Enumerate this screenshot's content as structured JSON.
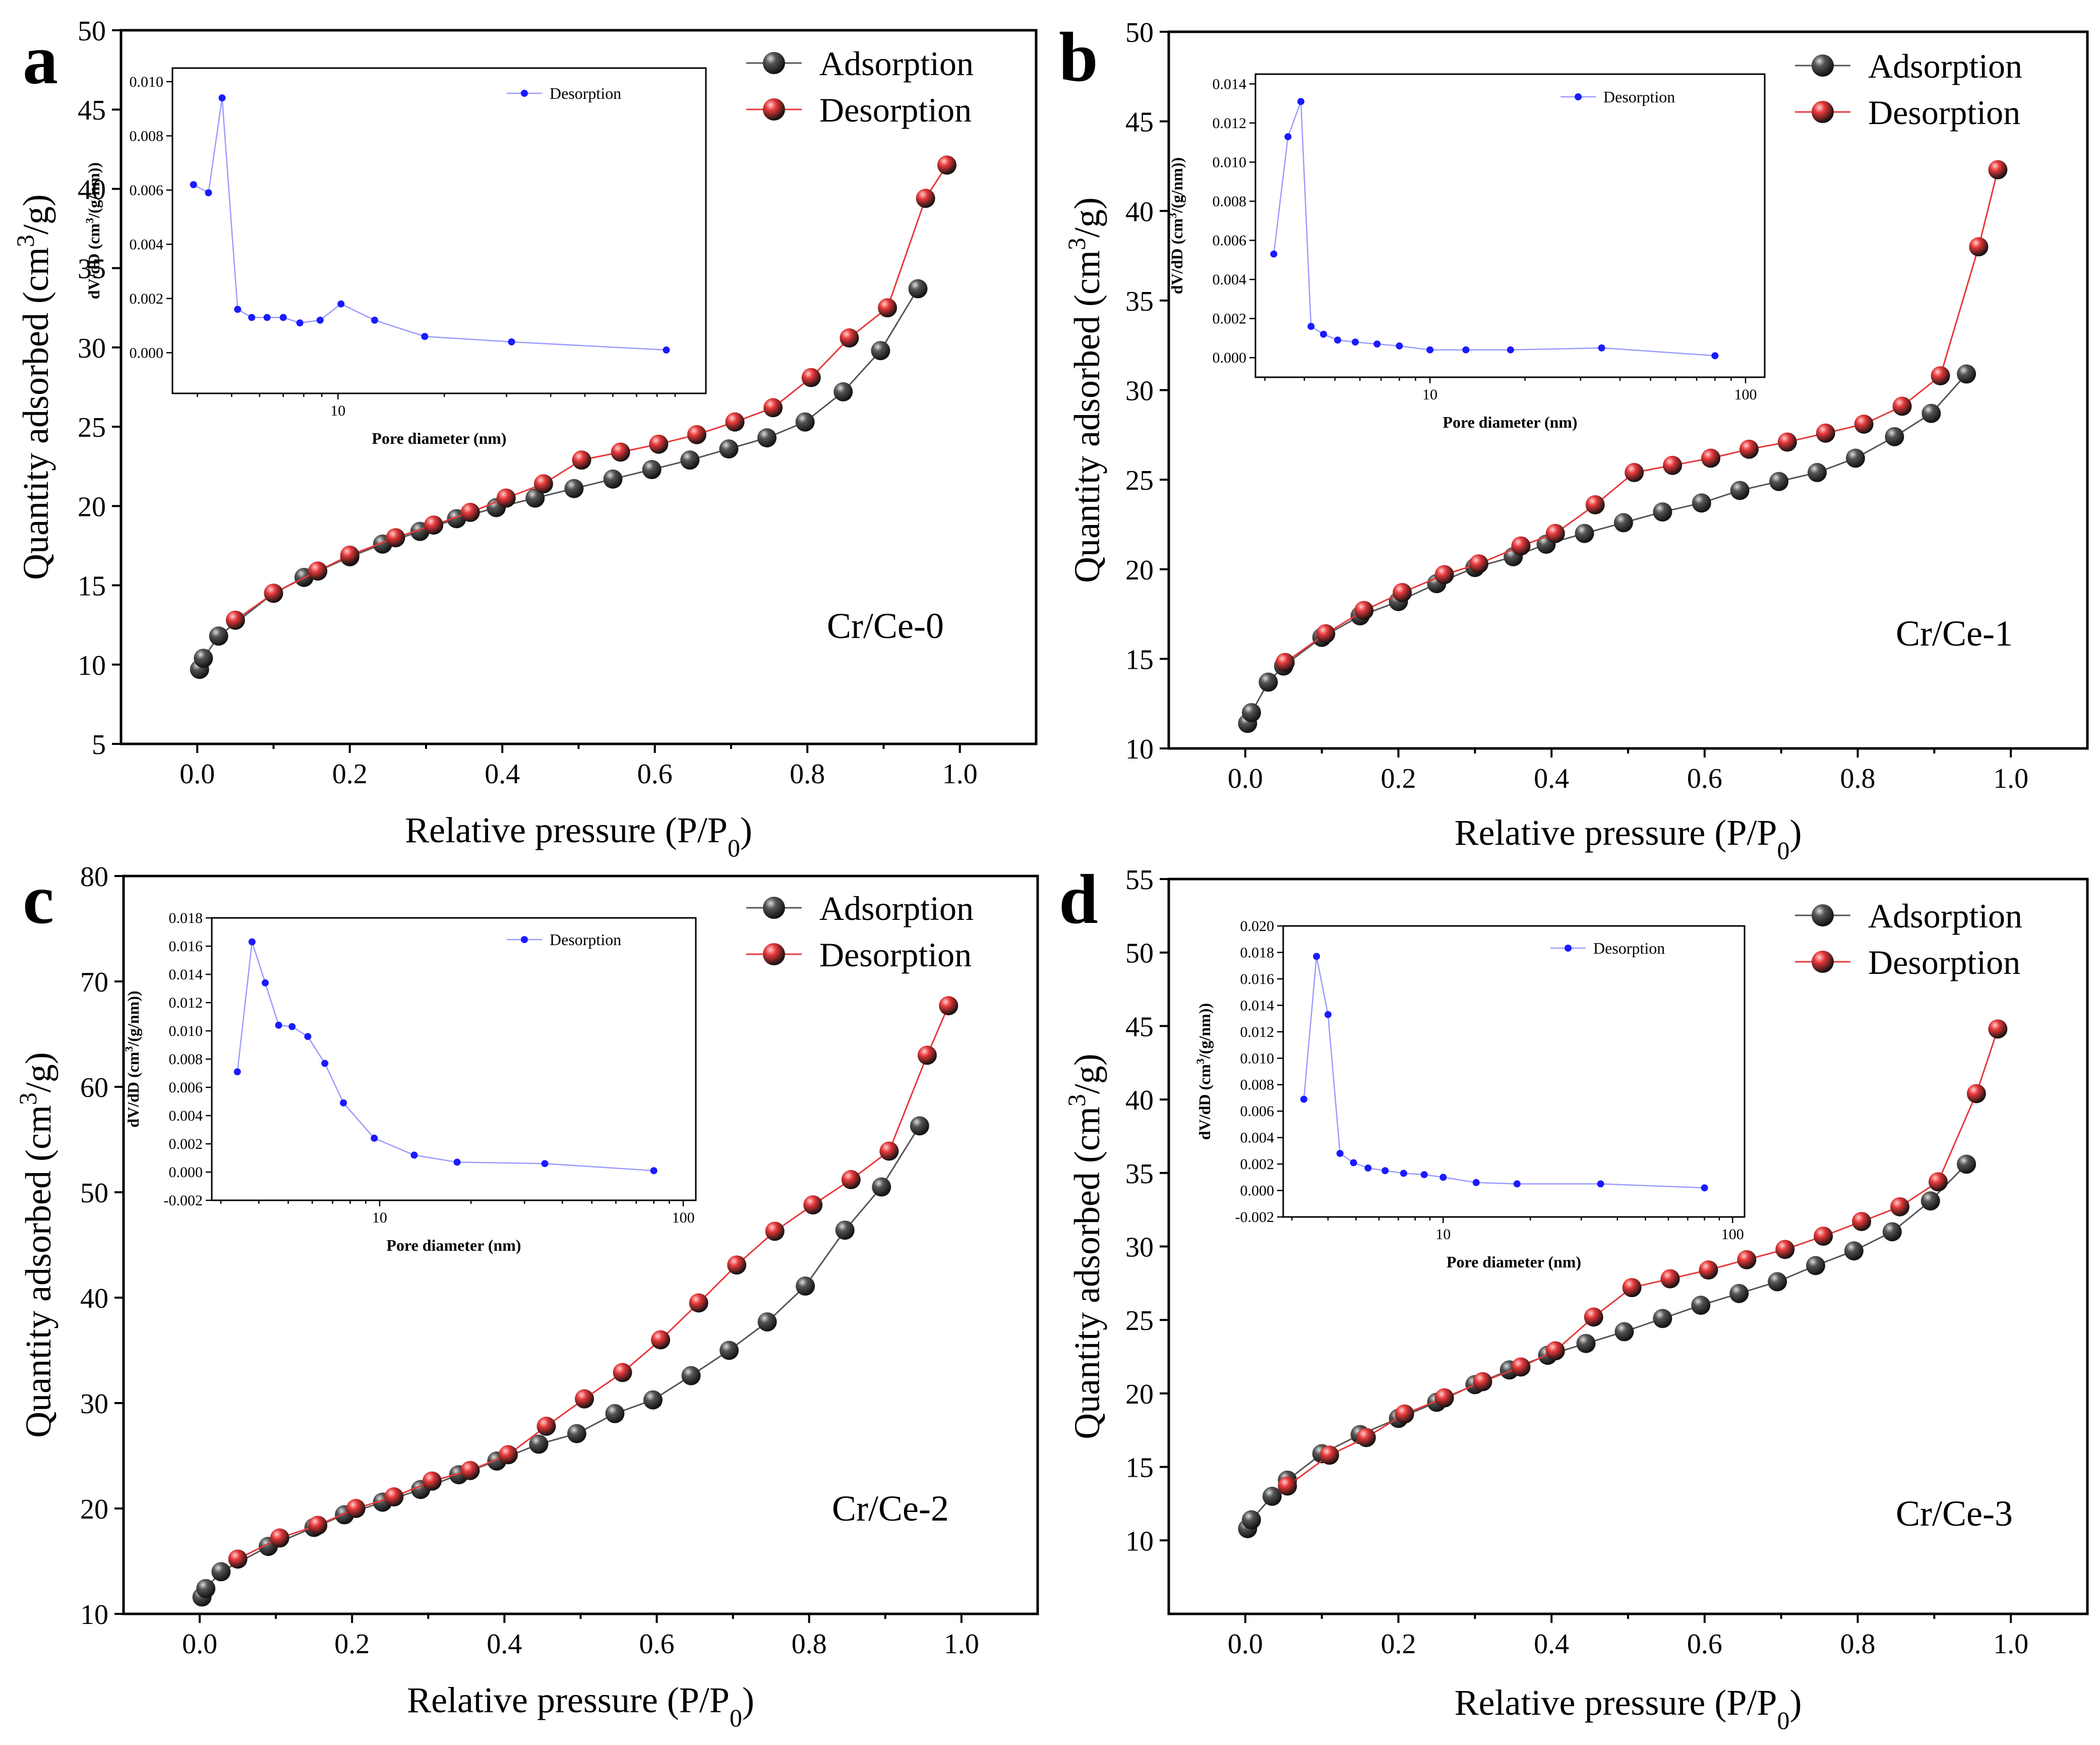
{
  "figure": {
    "x_label": "Relative pressure (P/P",
    "x_label_sub": "0",
    "x_label_close": ")",
    "y_label_pre": "Quantity adsorbed (cm",
    "y_label_sup": "3",
    "y_label_post": "/g)",
    "inset_x_label": "Pore diameter (nm)",
    "inset_y_label_pre": "dV/dD (cm",
    "inset_y_label_sup": "3",
    "inset_y_label_post": "/(g/nm))",
    "legend_ads": "Adsorption",
    "legend_des": "Desorption",
    "inset_legend": "Desorption",
    "colors": {
      "adsorption": "#555555",
      "desorption": "#e8383a",
      "inset": "#1a1aff",
      "inset_line": "#9a9aff"
    }
  },
  "chart_data": [
    {
      "type": "scatter",
      "panel": "a",
      "sample": "Cr/Ce-0",
      "xlim": [
        -0.1,
        1.1
      ],
      "ylim": [
        5,
        50
      ],
      "xticks": [
        "0.0",
        "0.2",
        "0.4",
        "0.6",
        "0.8",
        "1.0"
      ],
      "yticks": [
        "5",
        "10",
        "15",
        "20",
        "25",
        "30",
        "35",
        "40",
        "45",
        "50"
      ],
      "series": [
        {
          "name": "Adsorption",
          "x": [
            0.003,
            0.008,
            0.028,
            0.1,
            0.14,
            0.2,
            0.243,
            0.292,
            0.34,
            0.392,
            0.443,
            0.494,
            0.545,
            0.596,
            0.646,
            0.697,
            0.747,
            0.797,
            0.847,
            0.896,
            0.945
          ],
          "y": [
            9.7,
            10.4,
            11.8,
            14.5,
            15.5,
            16.8,
            17.6,
            18.4,
            19.2,
            19.9,
            20.5,
            21.1,
            21.7,
            22.3,
            22.9,
            23.6,
            24.3,
            25.3,
            27.2,
            29.8,
            33.7
          ]
        },
        {
          "name": "Desorption",
          "x": [
            0.05,
            0.1,
            0.158,
            0.2,
            0.26,
            0.31,
            0.358,
            0.405,
            0.454,
            0.504,
            0.555,
            0.605,
            0.655,
            0.705,
            0.755,
            0.805,
            0.855,
            0.905,
            0.955,
            0.983
          ],
          "y": [
            12.8,
            14.5,
            15.9,
            16.9,
            18.0,
            18.8,
            19.6,
            20.5,
            21.4,
            22.9,
            23.4,
            23.9,
            24.5,
            25.3,
            26.2,
            28.1,
            30.6,
            32.5,
            39.4,
            41.5
          ]
        }
      ],
      "inset": {
        "type": "line",
        "xscale": "log",
        "xlim": [
          3.4,
          110
        ],
        "ylim": [
          -0.0015,
          0.0105
        ],
        "xticks": [
          "10"
        ],
        "yticks": [
          "0.000",
          "0.002",
          "0.004",
          "0.006",
          "0.008",
          "0.010"
        ],
        "x": [
          3.9,
          4.3,
          4.7,
          5.2,
          5.7,
          6.3,
          7.0,
          7.8,
          8.9,
          10.2,
          12.7,
          17.6,
          31.0,
          85.0
        ],
        "y": [
          0.0062,
          0.0059,
          0.0094,
          0.0016,
          0.0013,
          0.0013,
          0.0013,
          0.0011,
          0.0012,
          0.0018,
          0.0012,
          0.0006,
          0.0004,
          0.0001
        ]
      }
    },
    {
      "type": "scatter",
      "panel": "b",
      "sample": "Cr/Ce-1",
      "xlim": [
        -0.1,
        1.1
      ],
      "ylim": [
        10,
        50
      ],
      "xticks": [
        "0.0",
        "0.2",
        "0.4",
        "0.6",
        "0.8",
        "1.0"
      ],
      "yticks": [
        "10",
        "15",
        "20",
        "25",
        "30",
        "35",
        "40",
        "45",
        "50"
      ],
      "series": [
        {
          "name": "Adsorption",
          "x": [
            0.003,
            0.008,
            0.03,
            0.05,
            0.1,
            0.15,
            0.2,
            0.25,
            0.3,
            0.35,
            0.393,
            0.443,
            0.494,
            0.545,
            0.596,
            0.646,
            0.697,
            0.747,
            0.797,
            0.848,
            0.896,
            0.942
          ],
          "y": [
            11.4,
            12.0,
            13.7,
            14.6,
            16.2,
            17.4,
            18.2,
            19.2,
            20.1,
            20.7,
            21.4,
            22.0,
            22.6,
            23.2,
            23.7,
            24.4,
            24.9,
            25.4,
            26.2,
            27.4,
            28.7,
            30.9
          ]
        },
        {
          "name": "Desorption",
          "x": [
            0.052,
            0.105,
            0.155,
            0.205,
            0.26,
            0.305,
            0.36,
            0.405,
            0.457,
            0.508,
            0.558,
            0.608,
            0.658,
            0.708,
            0.758,
            0.808,
            0.858,
            0.908,
            0.958,
            0.983
          ],
          "y": [
            14.8,
            16.4,
            17.7,
            18.7,
            19.7,
            20.3,
            21.3,
            22.0,
            23.6,
            25.4,
            25.8,
            26.2,
            26.7,
            27.1,
            27.6,
            28.1,
            29.1,
            30.8,
            38.0,
            42.3
          ]
        }
      ],
      "inset": {
        "type": "line",
        "xscale": "log",
        "xlim": [
          2.8,
          115
        ],
        "ylim": [
          -0.001,
          0.0145
        ],
        "xticks": [
          "10",
          "100"
        ],
        "yticks": [
          "0.000",
          "0.002",
          "0.004",
          "0.006",
          "0.008",
          "0.010",
          "0.012",
          "0.014"
        ],
        "x": [
          3.2,
          3.55,
          3.9,
          4.2,
          4.6,
          5.1,
          5.8,
          6.8,
          8.0,
          10.0,
          13.0,
          18.0,
          35.0,
          80.0
        ],
        "y": [
          0.0053,
          0.0113,
          0.0131,
          0.0016,
          0.0012,
          0.0009,
          0.0008,
          0.0007,
          0.0006,
          0.0004,
          0.0004,
          0.0004,
          0.0005,
          0.0001
        ]
      }
    },
    {
      "type": "scatter",
      "panel": "c",
      "sample": "Cr/Ce-2",
      "xlim": [
        -0.1,
        1.1
      ],
      "ylim": [
        10,
        80
      ],
      "xticks": [
        "0.0",
        "0.2",
        "0.4",
        "0.6",
        "0.8",
        "1.0"
      ],
      "yticks": [
        "10",
        "20",
        "30",
        "40",
        "50",
        "60",
        "70",
        "80"
      ],
      "series": [
        {
          "name": "Adsorption",
          "x": [
            0.003,
            0.008,
            0.028,
            0.09,
            0.15,
            0.19,
            0.24,
            0.29,
            0.34,
            0.39,
            0.445,
            0.495,
            0.545,
            0.595,
            0.645,
            0.695,
            0.745,
            0.795,
            0.847,
            0.895,
            0.945
          ],
          "y": [
            11.6,
            12.4,
            14.0,
            16.4,
            18.2,
            19.4,
            20.6,
            21.8,
            23.2,
            24.5,
            26.1,
            27.1,
            29.0,
            30.3,
            32.6,
            35.0,
            37.7,
            41.1,
            46.4,
            50.5,
            56.3
          ]
        },
        {
          "name": "Desorption",
          "x": [
            0.05,
            0.105,
            0.155,
            0.205,
            0.255,
            0.305,
            0.355,
            0.405,
            0.455,
            0.505,
            0.555,
            0.605,
            0.655,
            0.705,
            0.755,
            0.805,
            0.855,
            0.905,
            0.955,
            0.983
          ],
          "y": [
            15.2,
            17.2,
            18.4,
            20.0,
            21.1,
            22.6,
            23.6,
            25.1,
            27.8,
            30.4,
            32.9,
            36.0,
            39.5,
            43.1,
            46.3,
            48.8,
            51.2,
            53.9,
            63.0,
            67.7
          ]
        }
      ],
      "inset": {
        "type": "line",
        "xscale": "log",
        "xlim": [
          2.8,
          110
        ],
        "ylim": [
          -0.002,
          0.018
        ],
        "xticks": [
          "10",
          "100"
        ],
        "yticks": [
          "-0.002",
          "0.000",
          "0.002",
          "0.004",
          "0.006",
          "0.008",
          "0.010",
          "0.012",
          "0.014",
          "0.016",
          "0.018"
        ],
        "x": [
          3.4,
          3.8,
          4.2,
          4.65,
          5.15,
          5.8,
          6.6,
          7.6,
          9.6,
          13.0,
          18.0,
          35.0,
          80.0
        ],
        "y": [
          0.0071,
          0.0163,
          0.0134,
          0.0104,
          0.0103,
          0.0096,
          0.0077,
          0.0049,
          0.0024,
          0.0012,
          0.0007,
          0.0006,
          0.0001
        ]
      }
    },
    {
      "type": "scatter",
      "panel": "d",
      "sample": "Cr/Ce-3",
      "xlim": [
        -0.1,
        1.1
      ],
      "ylim": [
        5,
        55
      ],
      "xticks": [
        "0.0",
        "0.2",
        "0.4",
        "0.6",
        "0.8",
        "1.0"
      ],
      "yticks": [
        "10",
        "15",
        "20",
        "25",
        "30",
        "35",
        "40",
        "45",
        "50",
        "55"
      ],
      "series": [
        {
          "name": "Adsorption",
          "x": [
            0.003,
            0.008,
            0.035,
            0.055,
            0.1,
            0.15,
            0.2,
            0.25,
            0.3,
            0.345,
            0.395,
            0.445,
            0.495,
            0.545,
            0.595,
            0.645,
            0.695,
            0.745,
            0.795,
            0.845,
            0.895,
            0.942
          ],
          "y": [
            10.8,
            11.4,
            13.0,
            14.1,
            15.9,
            17.2,
            18.3,
            19.4,
            20.6,
            21.6,
            22.6,
            23.4,
            24.2,
            25.1,
            26.0,
            26.8,
            27.6,
            28.7,
            29.7,
            31.0,
            33.1,
            35.6
          ]
        },
        {
          "name": "Desorption",
          "x": [
            0.055,
            0.11,
            0.158,
            0.208,
            0.26,
            0.31,
            0.36,
            0.405,
            0.455,
            0.505,
            0.555,
            0.605,
            0.655,
            0.705,
            0.755,
            0.805,
            0.855,
            0.905,
            0.955,
            0.983
          ],
          "y": [
            13.7,
            15.8,
            17.0,
            18.6,
            19.7,
            20.8,
            21.8,
            22.9,
            25.2,
            27.2,
            27.8,
            28.4,
            29.1,
            29.8,
            30.7,
            31.7,
            32.7,
            34.4,
            40.4,
            44.8
          ]
        }
      ],
      "inset": {
        "type": "line",
        "xscale": "log",
        "xlim": [
          2.8,
          110
        ],
        "ylim": [
          -0.002,
          0.02
        ],
        "xticks": [
          "10",
          "100"
        ],
        "yticks": [
          "-0.002",
          "0.000",
          "0.002",
          "0.004",
          "0.006",
          "0.008",
          "0.010",
          "0.012",
          "0.014",
          "0.016",
          "0.018",
          "0.020"
        ],
        "x": [
          3.3,
          3.65,
          4.0,
          4.4,
          4.9,
          5.5,
          6.3,
          7.3,
          8.6,
          10.0,
          13.0,
          18.0,
          35.0,
          80.0
        ],
        "y": [
          0.0069,
          0.0177,
          0.0133,
          0.0028,
          0.0021,
          0.0017,
          0.0015,
          0.0013,
          0.0012,
          0.001,
          0.0006,
          0.0005,
          0.0005,
          0.0002
        ]
      }
    }
  ]
}
